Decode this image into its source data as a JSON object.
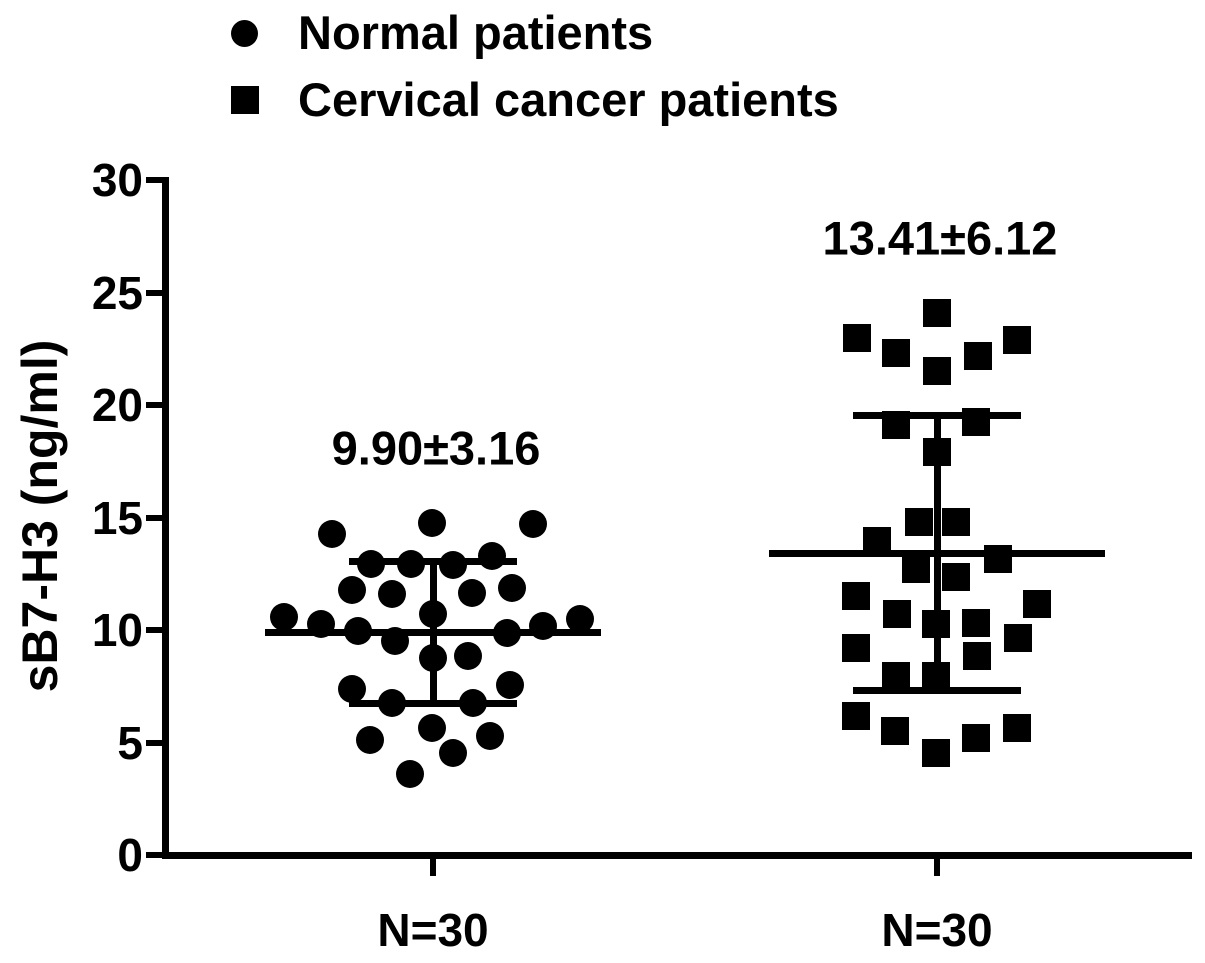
{
  "colors": {
    "foreground": "#000000",
    "background": "#ffffff"
  },
  "legend": {
    "position": "top-left",
    "items": [
      {
        "marker": "circle",
        "label": "Normal patients"
      },
      {
        "marker": "square",
        "label": "Cervical cancer patients"
      }
    ]
  },
  "chart_data": {
    "type": "scatter",
    "title": "",
    "xlabel": "",
    "ylabel": "sB7-H3 (ng/ml)",
    "ylim": [
      0,
      30
    ],
    "yticks": [
      0,
      5,
      10,
      15,
      20,
      25,
      30
    ],
    "grid": false,
    "legend_position": "top-left",
    "series": [
      {
        "name": "Normal patients",
        "marker": "circle",
        "n": 30,
        "x_label": "N=30",
        "mean": 9.9,
        "sd": 3.16,
        "annotation": "9.90±3.16",
        "points": [
          [
            -101,
            14.25
          ],
          [
            -1,
            14.75
          ],
          [
            100,
            14.7
          ],
          [
            -62,
            12.95
          ],
          [
            -22,
            12.95
          ],
          [
            20,
            12.9
          ],
          [
            59,
            13.3
          ],
          [
            -81,
            11.8
          ],
          [
            -41,
            11.6
          ],
          [
            39,
            11.65
          ],
          [
            79,
            11.85
          ],
          [
            -149,
            10.6
          ],
          [
            -112,
            10.25
          ],
          [
            -75,
            9.95
          ],
          [
            0,
            10.7
          ],
          [
            -38,
            9.5
          ],
          [
            74,
            9.85
          ],
          [
            110,
            10.2
          ],
          [
            147,
            10.5
          ],
          [
            0,
            8.75
          ],
          [
            35,
            8.85
          ],
          [
            -81,
            7.4
          ],
          [
            77,
            7.55
          ],
          [
            -41,
            6.75
          ],
          [
            40,
            6.75
          ],
          [
            -1,
            5.65
          ],
          [
            57,
            5.3
          ],
          [
            -63,
            5.1
          ],
          [
            20,
            4.55
          ],
          [
            -23,
            3.6
          ]
        ]
      },
      {
        "name": "Cervical cancer patients",
        "marker": "square",
        "n": 30,
        "x_label": "N=30",
        "mean": 13.41,
        "sd": 6.12,
        "annotation": "13.41±6.12",
        "points": [
          [
            0,
            24.1
          ],
          [
            -80,
            23.0
          ],
          [
            -41,
            22.3
          ],
          [
            80,
            22.9
          ],
          [
            41,
            22.2
          ],
          [
            0,
            21.5
          ],
          [
            -41,
            19.1
          ],
          [
            39,
            19.25
          ],
          [
            0,
            17.9
          ],
          [
            -18,
            14.8
          ],
          [
            19,
            14.8
          ],
          [
            -60,
            13.95
          ],
          [
            61,
            13.15
          ],
          [
            -21,
            12.7
          ],
          [
            19,
            12.35
          ],
          [
            -81,
            11.5
          ],
          [
            100,
            11.15
          ],
          [
            -40,
            10.7
          ],
          [
            -1,
            10.25
          ],
          [
            39,
            10.3
          ],
          [
            81,
            9.65
          ],
          [
            -81,
            9.2
          ],
          [
            40,
            8.85
          ],
          [
            -41,
            7.95
          ],
          [
            -1,
            7.95
          ],
          [
            -81,
            6.2
          ],
          [
            -42,
            5.5
          ],
          [
            -1,
            4.55
          ],
          [
            39,
            5.2
          ],
          [
            80,
            5.65
          ]
        ]
      }
    ]
  }
}
